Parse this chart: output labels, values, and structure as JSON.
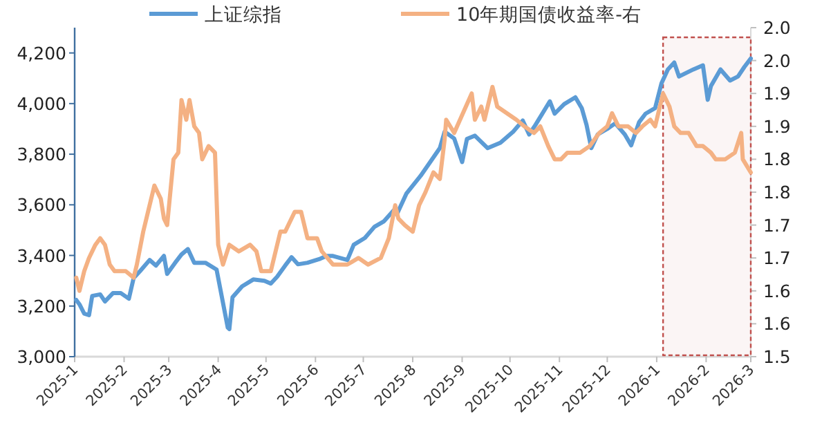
{
  "chart_data": {
    "type": "line",
    "legend": "top",
    "grid": false,
    "xlim": [
      "2025-01",
      "2026-03"
    ],
    "xticks": [
      {
        "value": "2025-01",
        "label": "2025-1"
      },
      {
        "value": "2025-02",
        "label": "2025-2"
      },
      {
        "value": "2025-03",
        "label": "2025-3"
      },
      {
        "value": "2025-04",
        "label": "2025-4"
      },
      {
        "value": "2025-05",
        "label": "2025-5"
      },
      {
        "value": "2025-06",
        "label": "2025-6"
      },
      {
        "value": "2025-07",
        "label": "2025-7"
      },
      {
        "value": "2025-08",
        "label": "2025-8"
      },
      {
        "value": "2025-09",
        "label": "2025-9"
      },
      {
        "value": "2025-10",
        "label": "2025-10"
      },
      {
        "value": "2025-11",
        "label": "2025-11"
      },
      {
        "value": "2025-12",
        "label": "2025-12"
      },
      {
        "value": "2026-01",
        "label": "2026-1"
      },
      {
        "value": "2026-02",
        "label": "2026-2"
      },
      {
        "value": "2026-03",
        "label": "2026-3"
      }
    ],
    "ylim": [
      3000,
      4300
    ],
    "yticks": [
      {
        "value": 3000,
        "label": "3,000"
      },
      {
        "value": 3200,
        "label": "3,200"
      },
      {
        "value": 3400,
        "label": "3,400"
      },
      {
        "value": 3600,
        "label": "3,600"
      },
      {
        "value": 3800,
        "label": "3,800"
      },
      {
        "value": 4000,
        "label": "4,000"
      },
      {
        "value": 4200,
        "label": "4,200"
      }
    ],
    "y2lim": [
      1.5,
      2.0
    ],
    "y2ticks": [
      1.5,
      {
        "value": 1.55,
        "label": "1.6"
      },
      1.6,
      {
        "value": 1.65,
        "label": "1.7"
      },
      1.7,
      {
        "value": 1.75,
        "label": "1.8"
      },
      1.8,
      {
        "value": 1.85,
        "label": "1.9"
      },
      1.9,
      {
        "value": 1.95,
        "label": "2.0"
      },
      {
        "value": 2.0,
        "label": "2.0"
      }
    ],
    "bands": [
      {
        "axis": "x",
        "from": "2026-01-05",
        "to": "2026-03-01",
        "color": "#c0504d"
      }
    ],
    "series": [
      {
        "name": "上证综指",
        "color": "#5b9bd5",
        "x": [
          "2025-01-02",
          "2025-01-04",
          "2025-01-07",
          "2025-01-10",
          "2025-01-12",
          "2025-01-17",
          "2025-01-20",
          "2025-01-25",
          "2025-01-30",
          "2025-02-04",
          "2025-02-07",
          "2025-02-11",
          "2025-02-17",
          "2025-02-21",
          "2025-02-26",
          "2025-02-28",
          "2025-03-05",
          "2025-03-09",
          "2025-03-13",
          "2025-03-17",
          "2025-03-24",
          "2025-03-31",
          "2025-04-07",
          "2025-04-08",
          "2025-04-10",
          "2025-04-16",
          "2025-04-23",
          "2025-04-30",
          "2025-05-04",
          "2025-05-08",
          "2025-05-13",
          "2025-05-17",
          "2025-05-21",
          "2025-05-27",
          "2025-06-04",
          "2025-06-08",
          "2025-06-12",
          "2025-06-21",
          "2025-06-25",
          "2025-07-02",
          "2025-07-08",
          "2025-07-14",
          "2025-07-20",
          "2025-07-22",
          "2025-07-28",
          "2025-08-06",
          "2025-08-18",
          "2025-08-21",
          "2025-08-27",
          "2025-09-01",
          "2025-09-04",
          "2025-09-09",
          "2025-09-17",
          "2025-09-25",
          "2025-10-03",
          "2025-10-09",
          "2025-10-13",
          "2025-10-17",
          "2025-10-26",
          "2025-10-29",
          "2025-11-04",
          "2025-11-11",
          "2025-11-15",
          "2025-11-18",
          "2025-11-21",
          "2025-11-25",
          "2025-12-01",
          "2025-12-06",
          "2025-12-12",
          "2025-12-16",
          "2025-12-21",
          "2025-12-25",
          "2025-12-31",
          "2026-01-04",
          "2026-01-08",
          "2026-01-12",
          "2026-01-15",
          "2026-01-24",
          "2026-01-30",
          "2026-02-02",
          "2026-02-04",
          "2026-02-10",
          "2026-02-16",
          "2026-02-21",
          "2026-02-25",
          "2026-03-01"
        ],
        "values": [
          3224,
          3207,
          3170,
          3164,
          3240,
          3246,
          3218,
          3251,
          3251,
          3229,
          3311,
          3338,
          3382,
          3360,
          3398,
          3327,
          3371,
          3404,
          3425,
          3371,
          3371,
          3344,
          3115,
          3109,
          3235,
          3278,
          3305,
          3300,
          3289,
          3316,
          3360,
          3393,
          3365,
          3371,
          3387,
          3398,
          3398,
          3382,
          3442,
          3469,
          3513,
          3535,
          3578,
          3562,
          3644,
          3715,
          3824,
          3889,
          3862,
          3769,
          3860,
          3873,
          3824,
          3845,
          3889,
          3933,
          3878,
          3916,
          4009,
          3960,
          3998,
          4025,
          3982,
          3916,
          3824,
          3878,
          3900,
          3922,
          3878,
          3835,
          3927,
          3960,
          3982,
          4080,
          4135,
          4162,
          4107,
          4135,
          4151,
          4015,
          4069,
          4135,
          4091,
          4107,
          4145,
          4178
        ]
      },
      {
        "name": "10年期国债收益率-右",
        "color": "#f4b183",
        "axis": "y2",
        "x": [
          "2025-01-02",
          "2025-01-04",
          "2025-01-07",
          "2025-01-10",
          "2025-01-14",
          "2025-01-17",
          "2025-01-20",
          "2025-01-23",
          "2025-01-26",
          "2025-02-02",
          "2025-02-07",
          "2025-02-09",
          "2025-02-13",
          "2025-02-16",
          "2025-02-20",
          "2025-02-22",
          "2025-02-24",
          "2025-02-26",
          "2025-02-28",
          "2025-03-04",
          "2025-03-07",
          "2025-03-09",
          "2025-03-12",
          "2025-03-14",
          "2025-03-17",
          "2025-03-20",
          "2025-03-22",
          "2025-03-26",
          "2025-03-30",
          "2025-04-01",
          "2025-04-04",
          "2025-04-08",
          "2025-04-14",
          "2025-04-21",
          "2025-04-25",
          "2025-04-28",
          "2025-05-04",
          "2025-05-10",
          "2025-05-13",
          "2025-05-19",
          "2025-05-23",
          "2025-05-27",
          "2025-06-02",
          "2025-06-05",
          "2025-06-12",
          "2025-06-21",
          "2025-06-28",
          "2025-07-04",
          "2025-07-12",
          "2025-07-17",
          "2025-07-21",
          "2025-07-23",
          "2025-07-27",
          "2025-08-01",
          "2025-08-05",
          "2025-08-09",
          "2025-08-14",
          "2025-08-18",
          "2025-08-21",
          "2025-08-22",
          "2025-08-27",
          "2025-09-07",
          "2025-09-09",
          "2025-09-13",
          "2025-09-15",
          "2025-09-20",
          "2025-09-23",
          "2025-09-29",
          "2025-10-05",
          "2025-10-10",
          "2025-10-16",
          "2025-10-20",
          "2025-10-25",
          "2025-10-29",
          "2025-11-02",
          "2025-11-06",
          "2025-11-14",
          "2025-11-20",
          "2025-11-26",
          "2025-12-01",
          "2025-12-04",
          "2025-12-08",
          "2025-12-14",
          "2025-12-19",
          "2025-12-23",
          "2025-12-28",
          "2025-12-31",
          "2026-01-05",
          "2026-01-09",
          "2026-01-12",
          "2026-01-16",
          "2026-01-21",
          "2026-01-26",
          "2026-01-30",
          "2026-02-04",
          "2026-02-07",
          "2026-02-13",
          "2026-02-19",
          "2026-02-23",
          "2026-02-24",
          "2026-03-01"
        ],
        "values": [
          1.62,
          1.6,
          1.63,
          1.65,
          1.67,
          1.68,
          1.67,
          1.64,
          1.63,
          1.63,
          1.62,
          1.64,
          1.69,
          1.72,
          1.76,
          1.75,
          1.74,
          1.71,
          1.7,
          1.8,
          1.81,
          1.89,
          1.86,
          1.89,
          1.85,
          1.84,
          1.8,
          1.82,
          1.81,
          1.67,
          1.64,
          1.67,
          1.66,
          1.67,
          1.66,
          1.63,
          1.63,
          1.69,
          1.69,
          1.72,
          1.72,
          1.68,
          1.68,
          1.66,
          1.64,
          1.64,
          1.65,
          1.64,
          1.65,
          1.68,
          1.73,
          1.71,
          1.7,
          1.69,
          1.73,
          1.75,
          1.78,
          1.77,
          1.83,
          1.86,
          1.84,
          1.9,
          1.86,
          1.88,
          1.86,
          1.91,
          1.88,
          1.87,
          1.86,
          1.85,
          1.84,
          1.85,
          1.82,
          1.8,
          1.8,
          1.81,
          1.81,
          1.82,
          1.84,
          1.85,
          1.87,
          1.85,
          1.85,
          1.84,
          1.85,
          1.86,
          1.85,
          1.9,
          1.88,
          1.85,
          1.84,
          1.84,
          1.82,
          1.82,
          1.81,
          1.8,
          1.8,
          1.81,
          1.84,
          1.8,
          1.78
        ]
      }
    ]
  }
}
